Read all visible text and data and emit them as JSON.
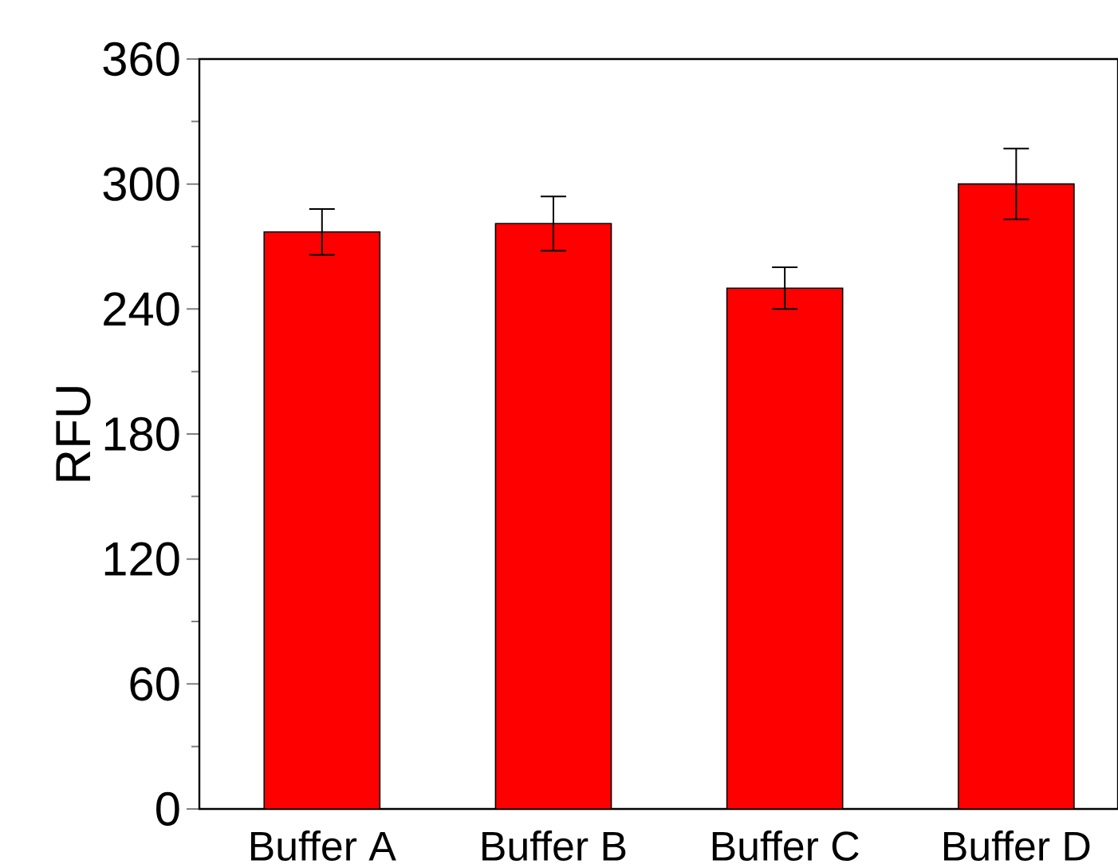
{
  "chart_data": {
    "type": "bar",
    "ylabel": "RFU",
    "categories": [
      "Buffer A",
      "Buffer B",
      "Buffer C",
      "Buffer D"
    ],
    "values": [
      277,
      281,
      250,
      300
    ],
    "errors": [
      11,
      13,
      10,
      17
    ],
    "color": "#ff0000",
    "ylim": [
      0,
      360
    ],
    "yticks": [
      0,
      60,
      120,
      180,
      240,
      300,
      360
    ],
    "grid": false
  }
}
